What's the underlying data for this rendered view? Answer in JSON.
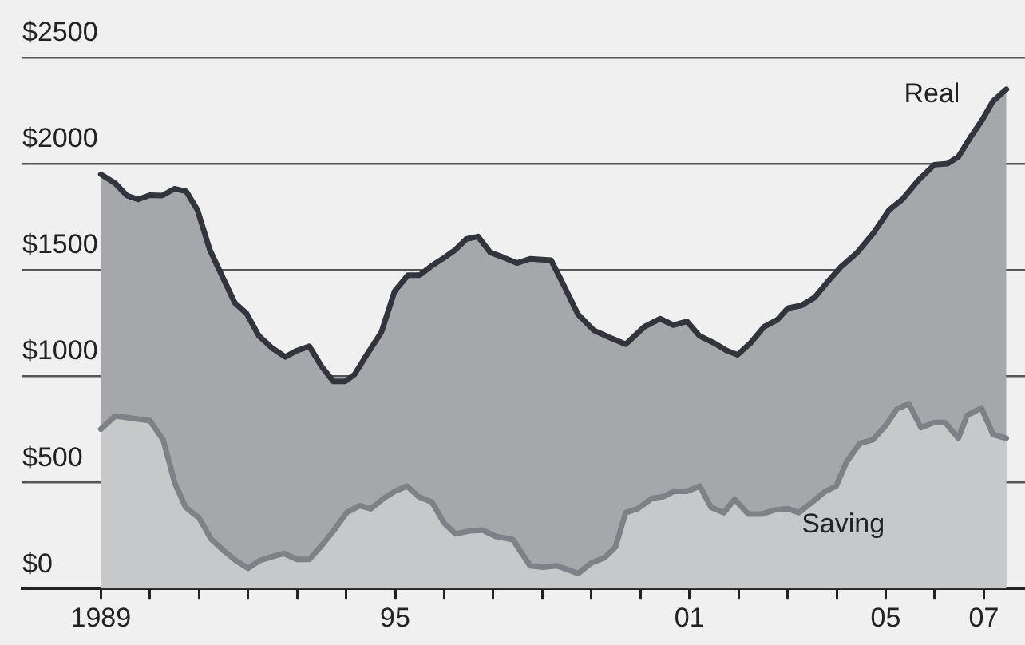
{
  "chart_data": {
    "type": "area",
    "xlim": [
      1987.4,
      2007.84
    ],
    "ylim": [
      0,
      2500
    ],
    "yticks": [
      {
        "value": 0,
        "label": "$0"
      },
      {
        "value": 500,
        "label": "$500"
      },
      {
        "value": 1000,
        "label": "$1000"
      },
      {
        "value": 1500,
        "label": "$1500"
      },
      {
        "value": 2000,
        "label": "$2000"
      },
      {
        "value": 2500,
        "label": "$2500"
      }
    ],
    "xticks": [
      {
        "value": 1989,
        "label": "1989"
      },
      {
        "value": 1990,
        "label": null
      },
      {
        "value": 1991,
        "label": null
      },
      {
        "value": 1992,
        "label": null
      },
      {
        "value": 1993,
        "label": null
      },
      {
        "value": 1994,
        "label": null
      },
      {
        "value": 1995,
        "label": "95"
      },
      {
        "value": 1996,
        "label": null
      },
      {
        "value": 1997,
        "label": null
      },
      {
        "value": 1998,
        "label": null
      },
      {
        "value": 1999,
        "label": null
      },
      {
        "value": 2000,
        "label": null
      },
      {
        "value": 2001,
        "label": "01"
      },
      {
        "value": 2002,
        "label": null
      },
      {
        "value": 2003,
        "label": null
      },
      {
        "value": 2004,
        "label": null
      },
      {
        "value": 2005,
        "label": "05"
      },
      {
        "value": 2006,
        "label": null
      },
      {
        "value": 2007,
        "label": "07"
      }
    ],
    "grid": "y",
    "legend": false,
    "marker": "none",
    "line_style": "solid",
    "series": [
      {
        "name": "Real",
        "color": "#a6a7aa",
        "x": [
          1989.0,
          1989.29,
          1989.53,
          1989.76,
          1990.0,
          1990.25,
          1990.5,
          1990.74,
          1990.97,
          1991.22,
          1991.5,
          1991.73,
          1991.97,
          1992.22,
          1992.49,
          1992.76,
          1993.0,
          1993.25,
          1993.5,
          1993.74,
          1993.98,
          1994.17,
          1994.44,
          1994.72,
          1994.99,
          1995.26,
          1995.5,
          1995.75,
          1996.0,
          1996.23,
          1996.45,
          1996.69,
          1996.94,
          1997.19,
          1997.48,
          1997.75,
          1998.18,
          1998.4,
          1998.73,
          1999.05,
          1999.37,
          1999.7,
          2000.08,
          2000.4,
          2000.67,
          2000.95,
          2001.2,
          2001.49,
          2001.76,
          2001.98,
          2002.25,
          2002.52,
          2002.79,
          2003.01,
          2003.28,
          2003.55,
          2003.82,
          2004.09,
          2004.42,
          2004.74,
          2005.07,
          2005.34,
          2005.66,
          2005.99,
          2006.26,
          2006.48,
          2006.75,
          2006.97,
          2007.19,
          2007.46
        ],
        "values": [
          1950,
          1908,
          1850,
          1832,
          1852,
          1850,
          1882,
          1870,
          1782,
          1595,
          1457,
          1345,
          1295,
          1190,
          1132,
          1090,
          1120,
          1140,
          1045,
          975,
          975,
          1007,
          1107,
          1207,
          1400,
          1475,
          1475,
          1520,
          1557,
          1595,
          1645,
          1657,
          1582,
          1560,
          1532,
          1552,
          1545,
          1445,
          1290,
          1215,
          1182,
          1150,
          1232,
          1270,
          1240,
          1257,
          1190,
          1157,
          1120,
          1100,
          1157,
          1232,
          1265,
          1320,
          1332,
          1370,
          1445,
          1515,
          1582,
          1670,
          1782,
          1832,
          1920,
          1995,
          2000,
          2032,
          2132,
          2207,
          2295,
          2350
        ]
      },
      {
        "name": "Saving",
        "color": "#c7c8ca",
        "x": [
          1989.0,
          1989.29,
          1989.67,
          1990.0,
          1990.27,
          1990.51,
          1990.73,
          1991.0,
          1991.25,
          1991.52,
          1991.75,
          1992.0,
          1992.24,
          1992.49,
          1992.73,
          1993.0,
          1993.25,
          1993.52,
          1993.74,
          1994.01,
          1994.28,
          1994.5,
          1994.77,
          1994.99,
          1995.24,
          1995.48,
          1995.75,
          1996.0,
          1996.23,
          1996.5,
          1996.78,
          1997.05,
          1997.4,
          1997.75,
          1998.02,
          1998.29,
          1998.51,
          1998.73,
          1999.0,
          1999.27,
          1999.49,
          1999.7,
          1999.94,
          2000.24,
          2000.46,
          2000.68,
          2000.95,
          2001.21,
          2001.44,
          2001.7,
          2001.92,
          2002.2,
          2002.47,
          2002.74,
          2003.01,
          2003.23,
          2003.5,
          2003.77,
          2003.99,
          2004.2,
          2004.47,
          2004.74,
          2005.01,
          2005.23,
          2005.47,
          2005.72,
          2005.99,
          2006.21,
          2006.48,
          2006.66,
          2006.95,
          2007.19,
          2007.46
        ],
        "values": [
          750,
          812,
          800,
          790,
          700,
          495,
          382,
          332,
          232,
          175,
          132,
          95,
          132,
          150,
          165,
          137,
          137,
          207,
          270,
          357,
          390,
          375,
          425,
          457,
          482,
          432,
          407,
          307,
          257,
          270,
          275,
          245,
          230,
          107,
          100,
          107,
          90,
          70,
          120,
          145,
          195,
          357,
          375,
          425,
          432,
          457,
          457,
          482,
          382,
          357,
          420,
          350,
          350,
          370,
          375,
          357,
          407,
          457,
          482,
          595,
          682,
          700,
          770,
          845,
          870,
          757,
          782,
          782,
          707,
          815,
          850,
          725,
          707
        ]
      }
    ]
  }
}
